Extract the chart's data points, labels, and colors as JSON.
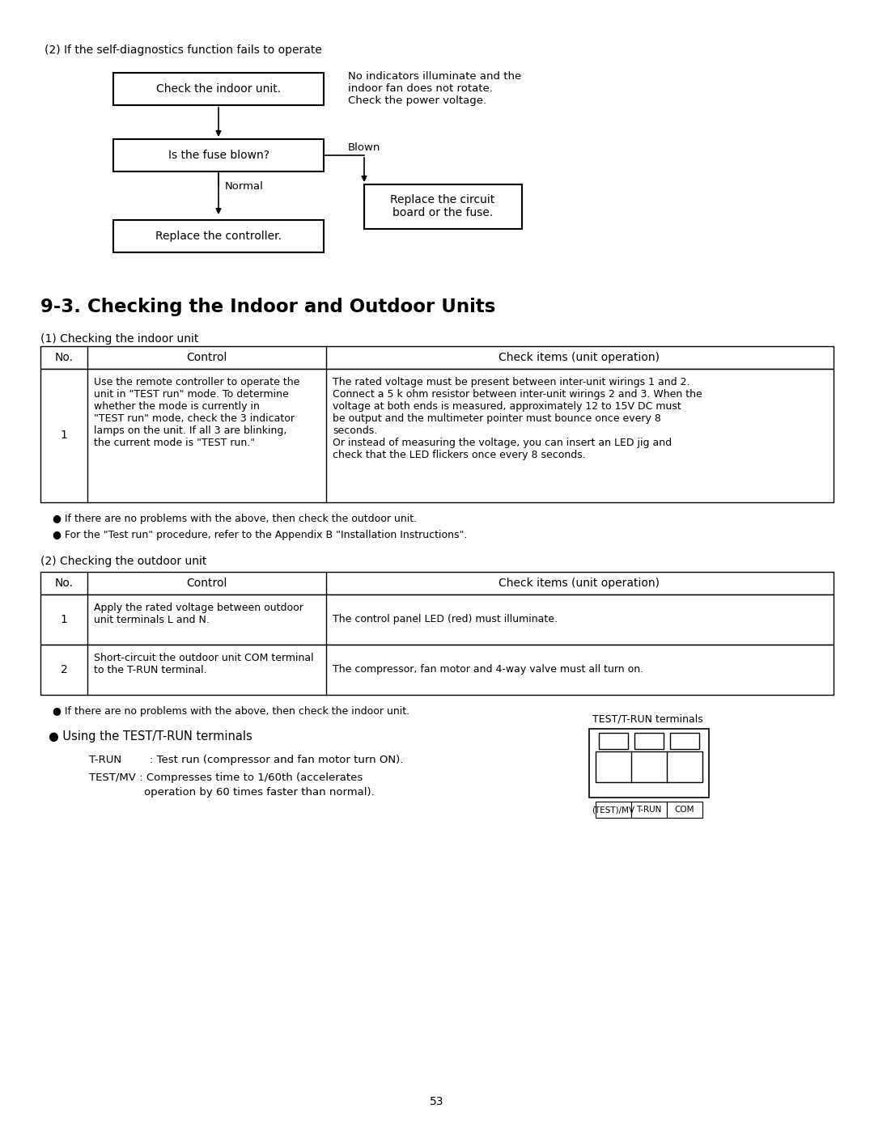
{
  "bg_color": "#ffffff",
  "page_number": "53",
  "flowchart_title": "(2) If the self-diagnostics function fails to operate",
  "fc_box1_text": "Check the indoor unit.",
  "fc_box2_text": "Is the fuse blown?",
  "fc_box3_text": "Replace the controller.",
  "fc_box4_text": "Replace the circuit\nboard or the fuse.",
  "fc_note": "No indicators illuminate and the\nindoor fan does not rotate.\nCheck the power voltage.",
  "fc_blown": "Blown",
  "fc_normal": "Normal",
  "section_title": "9-3. Checking the Indoor and Outdoor Units",
  "indoor_subtitle": "(1) Checking the indoor unit",
  "indoor_hdr": [
    "No.",
    "Control",
    "Check items (unit operation)"
  ],
  "indoor_r1_no": "1",
  "indoor_r1_ctrl": "Use the remote controller to operate the\nunit in \"TEST run\" mode. To determine\nwhether the mode is currently in\n\"TEST run\" mode, check the 3 indicator\nlamps on the unit. If all 3 are blinking,\nthe current mode is \"TEST run.\"",
  "indoor_r1_chk": "The rated voltage must be present between inter-unit wirings 1 and 2.\nConnect a 5 k ohm resistor between inter-unit wirings 2 and 3. When the\nvoltage at both ends is measured, approximately 12 to 15V DC must\nbe output and the multimeter pointer must bounce once every 8\nseconds.\nOr instead of measuring the voltage, you can insert an LED jig and\ncheck that the LED flickers once every 8 seconds.",
  "indoor_b1": "● If there are no problems with the above, then check the outdoor unit.",
  "indoor_b2": "● For the \"Test run\" procedure, refer to the Appendix B \"Installation Instructions\".",
  "outdoor_subtitle": "(2) Checking the outdoor unit",
  "outdoor_hdr": [
    "No.",
    "Control",
    "Check items (unit operation)"
  ],
  "outdoor_r1_no": "1",
  "outdoor_r1_ctrl": "Apply the rated voltage between outdoor\nunit terminals L and N.",
  "outdoor_r1_chk": "The control panel LED (red) must illuminate.",
  "outdoor_r2_no": "2",
  "outdoor_r2_ctrl": "Short-circuit the outdoor unit COM terminal\nto the T-RUN terminal.",
  "outdoor_r2_chk": "The compressor, fan motor and 4-way valve must all turn on.",
  "outdoor_b1": "● If there are no problems with the above, then check the indoor unit.",
  "term_bullet": "● Using the TEST/T-RUN terminals",
  "term_trun_lbl": "T-RUN",
  "term_trun_colon": "    : Test run (compressor and fan motor turn ON).",
  "term_testmv_lbl": "TEST/MV",
  "term_testmv_colon": " : Compresses time to 1/60th (accelerates",
  "term_testmv_cont": "         operation by 60 times faster than normal).",
  "term_diag_title": "TEST/T-RUN terminals",
  "term_labels": [
    "(TEST)/MV",
    "T-RUN",
    "COM"
  ]
}
